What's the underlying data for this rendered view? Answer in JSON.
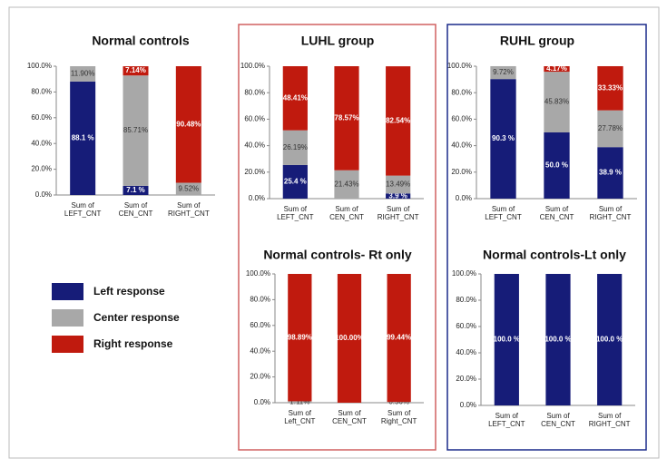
{
  "chart_data": [
    {
      "type": "bar",
      "stacked": true,
      "title": "Normal controls",
      "categories": [
        "Sum of LEFT_CNT",
        "Sum of CEN_CNT",
        "Sum of RIGHT_CNT"
      ],
      "series": [
        {
          "name": "Left response",
          "color": "#161c78",
          "values": [
            88.1,
            7.1,
            0
          ],
          "value_labels": [
            "88.1 %",
            "7.1 %",
            null
          ]
        },
        {
          "name": "Center response",
          "color": "#a8a8a8",
          "values": [
            11.9,
            85.71,
            9.52
          ],
          "value_labels": [
            "11.90%",
            "85.71%",
            "9.52%"
          ]
        },
        {
          "name": "Right response",
          "color": "#c01a0e",
          "values": [
            0,
            7.14,
            90.48
          ],
          "value_labels": [
            null,
            "7.14%",
            "90.48%"
          ]
        }
      ],
      "ylim": [
        0,
        100
      ],
      "yticks": [
        {
          "value": 0,
          "label": "0.0%"
        },
        {
          "value": 20,
          "label": "20.0%"
        },
        {
          "value": 40,
          "label": "40.0%"
        },
        {
          "value": 60,
          "label": "60.0%"
        },
        {
          "value": 80,
          "label": "80.0%"
        },
        {
          "value": 100,
          "label": "100.0%"
        }
      ]
    },
    {
      "type": "bar",
      "stacked": true,
      "title": "LUHL group",
      "categories": [
        "Sum of LEFT_CNT",
        "Sum of CEN_CNT",
        "Sum of RIGHT_CNT"
      ],
      "series": [
        {
          "color": "#161c78",
          "values": [
            25.4,
            0,
            3.9
          ],
          "value_labels": [
            "25.4 %",
            null,
            "3.9 %"
          ]
        },
        {
          "color": "#a8a8a8",
          "values": [
            26.19,
            21.43,
            13.49
          ],
          "value_labels": [
            "26.19%",
            "21.43%",
            "13.49%"
          ]
        },
        {
          "color": "#c01a0e",
          "values": [
            48.41,
            78.57,
            82.54
          ],
          "value_labels": [
            "48.41%",
            "78.57%",
            "82.54%"
          ]
        }
      ],
      "ylim": [
        0,
        100
      ],
      "yticks": [
        {
          "value": 0,
          "label": "0.0%"
        },
        {
          "value": 20,
          "label": "20.0%"
        },
        {
          "value": 40,
          "label": "40.0%"
        },
        {
          "value": 60,
          "label": "60.0%"
        },
        {
          "value": 80,
          "label": "80.0%"
        },
        {
          "value": 100,
          "label": "100.0%"
        }
      ]
    },
    {
      "type": "bar",
      "stacked": true,
      "title": "RUHL group",
      "categories": [
        "Sum of LEFT_CNT",
        "Sum of CEN_CNT",
        "Sum of RIGHT_CNT"
      ],
      "series": [
        {
          "color": "#161c78",
          "values": [
            90.3,
            50.0,
            38.9
          ],
          "value_labels": [
            "90.3 %",
            "50.0 %",
            "38.9 %"
          ]
        },
        {
          "color": "#a8a8a8",
          "values": [
            9.72,
            45.83,
            27.78
          ],
          "value_labels": [
            "9.72%",
            "45.83%",
            "27.78%"
          ]
        },
        {
          "color": "#c01a0e",
          "values": [
            0,
            4.17,
            33.33
          ],
          "value_labels": [
            null,
            "4.17%",
            "33.33%"
          ]
        }
      ],
      "ylim": [
        0,
        100
      ],
      "yticks": [
        {
          "value": 0,
          "label": "0.0%"
        },
        {
          "value": 20,
          "label": "20.0%"
        },
        {
          "value": 40,
          "label": "40.0%"
        },
        {
          "value": 60,
          "label": "60.0%"
        },
        {
          "value": 80,
          "label": "80.0%"
        },
        {
          "value": 100,
          "label": "100.0%"
        }
      ]
    },
    {
      "type": "bar",
      "stacked": true,
      "title": "Normal controls- Rt only",
      "categories": [
        "Sum of Left_CNT",
        "Sum of CEN_CNT",
        "Sum of Right_CNT"
      ],
      "series": [
        {
          "color": "#161c78",
          "values": [
            0,
            0,
            0
          ],
          "value_labels": [
            null,
            null,
            null
          ]
        },
        {
          "color": "#a8a8a8",
          "values": [
            1.11,
            0,
            0.56
          ],
          "value_labels": [
            "1.11%",
            null,
            "0.56%"
          ]
        },
        {
          "color": "#c01a0e",
          "values": [
            98.89,
            100.0,
            99.44
          ],
          "value_labels": [
            "98.89%",
            "100.00%",
            "99.44%"
          ]
        }
      ],
      "ylim": [
        0,
        100
      ],
      "yticks": [
        {
          "value": 0,
          "label": "0.0%"
        },
        {
          "value": 20,
          "label": "20.0%"
        },
        {
          "value": 40,
          "label": "40.0%"
        },
        {
          "value": 60,
          "label": "60.0%"
        },
        {
          "value": 80,
          "label": "80.0%"
        },
        {
          "value": 100,
          "label": "100.0%"
        }
      ]
    },
    {
      "type": "bar",
      "stacked": true,
      "title": "Normal controls-Lt only",
      "categories": [
        "Sum of LEFT_CNT",
        "Sum of CEN_CNT",
        "Sum of RIGHT_CNT"
      ],
      "series": [
        {
          "color": "#161c78",
          "values": [
            100.0,
            100.0,
            100.0
          ],
          "value_labels": [
            "100.0 %",
            "100.0 %",
            "100.0 %"
          ]
        },
        {
          "color": "#a8a8a8",
          "values": [
            0,
            0,
            0
          ],
          "value_labels": [
            null,
            null,
            null
          ]
        },
        {
          "color": "#c01a0e",
          "values": [
            0,
            0,
            0
          ],
          "value_labels": [
            null,
            null,
            null
          ]
        }
      ],
      "ylim": [
        0,
        100
      ],
      "yticks": [
        {
          "value": 0,
          "label": "0.0%"
        },
        {
          "value": 20,
          "label": "20.0%"
        },
        {
          "value": 40,
          "label": "40.0%"
        },
        {
          "value": 60,
          "label": "60.0%"
        },
        {
          "value": 80,
          "label": "80.0%"
        },
        {
          "value": 100,
          "label": "100.0%"
        }
      ]
    }
  ]
}
